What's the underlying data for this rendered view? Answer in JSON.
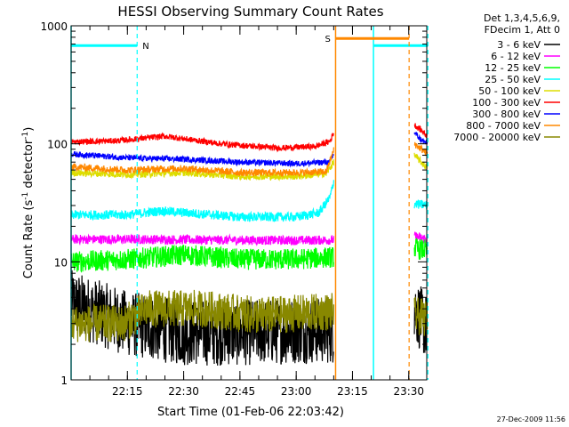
{
  "chart_data": {
    "type": "line",
    "title": "HESSI Observing Summary Count Rates",
    "xlabel": "Start Time (01-Feb-06 22:03:42)",
    "ylabel_main": "Count Rate (s",
    "ylabel_sup1": "-1",
    "ylabel_mid": " detector",
    "ylabel_sup2": "-1",
    "ylabel_end": ")",
    "ylog": true,
    "ylim": [
      1,
      1000
    ],
    "y_ticks": [
      {
        "v": 1,
        "label": "1"
      },
      {
        "v": 10,
        "label": "10"
      },
      {
        "v": 100,
        "label": "100"
      },
      {
        "v": 1000,
        "label": "1000"
      }
    ],
    "xlim": [
      "22:03:42",
      "23:38:30"
    ],
    "x_ticks": [
      {
        "min": 15,
        "label": "22:15"
      },
      {
        "min": 30,
        "label": "22:30"
      },
      {
        "min": 45,
        "label": "22:45"
      },
      {
        "min": 60,
        "label": "23:00"
      },
      {
        "min": 75,
        "label": "23:15"
      },
      {
        "min": 90,
        "label": "23:30"
      }
    ],
    "x_minor_step_minutes": 5,
    "legend": {
      "position": "top-right-outside",
      "header1": "Det 1,3,4,5,6,9,",
      "header2": "FDecim 1, Att 0",
      "entries": [
        {
          "label": "3 - 6 keV",
          "color": "#000000"
        },
        {
          "label": "6 - 12 keV",
          "color": "#ff00ff"
        },
        {
          "label": "12 - 25 keV",
          "color": "#00ff00"
        },
        {
          "label": "25 - 50 keV",
          "color": "#00ffff"
        },
        {
          "label": "50 - 100 keV",
          "color": "#dddd00"
        },
        {
          "label": "100 - 300 keV",
          "color": "#ff0000"
        },
        {
          "label": "300 - 800 keV",
          "color": "#0000ff"
        },
        {
          "label": "800 - 7000 keV",
          "color": "#ff8800"
        },
        {
          "label": "7000 - 20000 keV",
          "color": "#888800"
        }
      ]
    },
    "series": [
      {
        "name": "3 - 6 keV",
        "color": "#000000",
        "seg1": [
          [
            0,
            4.5
          ],
          [
            15,
            3.0
          ],
          [
            30,
            2.5
          ],
          [
            45,
            2.5
          ],
          [
            60,
            2.6
          ],
          [
            70,
            2.6
          ]
        ],
        "seg2": [
          [
            91.5,
            4.0
          ],
          [
            94,
            3.0
          ],
          [
            95,
            2.7
          ]
        ],
        "noise": 0.28
      },
      {
        "name": "6 - 12 keV",
        "color": "#ff00ff",
        "seg1": [
          [
            0,
            15.5
          ],
          [
            20,
            15.5
          ],
          [
            40,
            15.3
          ],
          [
            60,
            15.2
          ],
          [
            70,
            15.3
          ]
        ],
        "seg2": [
          [
            91.5,
            16.5
          ],
          [
            95,
            15.5
          ]
        ],
        "noise": 0.04
      },
      {
        "name": "12 - 25 keV",
        "color": "#00ff00",
        "seg1": [
          [
            0,
            10.0
          ],
          [
            15,
            10.5
          ],
          [
            30,
            11.5
          ],
          [
            45,
            10.5
          ],
          [
            60,
            10.5
          ],
          [
            70,
            11.0
          ]
        ],
        "seg2": [
          [
            91.5,
            13.0
          ],
          [
            95,
            12.5
          ]
        ],
        "noise": 0.09
      },
      {
        "name": "25 - 50 keV",
        "color": "#00ffff",
        "seg1": [
          [
            0,
            25
          ],
          [
            15,
            25
          ],
          [
            24,
            27
          ],
          [
            45,
            24
          ],
          [
            60,
            24
          ],
          [
            66,
            26
          ],
          [
            69,
            35
          ],
          [
            70,
            48
          ]
        ],
        "seg2": [
          [
            91.5,
            31
          ],
          [
            95,
            30
          ]
        ],
        "noise": 0.04
      },
      {
        "name": "50 - 100 keV",
        "color": "#dddd00",
        "seg1": [
          [
            0,
            57
          ],
          [
            15,
            55
          ],
          [
            30,
            57
          ],
          [
            45,
            53
          ],
          [
            60,
            53
          ],
          [
            68,
            56
          ],
          [
            70,
            70
          ]
        ],
        "seg2": [
          [
            91.5,
            80
          ],
          [
            95,
            62
          ]
        ],
        "noise": 0.03
      },
      {
        "name": "100 - 300 keV",
        "color": "#ff0000",
        "seg1": [
          [
            0,
            104
          ],
          [
            12,
            106
          ],
          [
            25,
            116
          ],
          [
            40,
            100
          ],
          [
            55,
            92
          ],
          [
            65,
            95
          ],
          [
            69,
            105
          ],
          [
            70,
            125
          ]
        ],
        "seg2": [
          [
            91.5,
            145
          ],
          [
            94,
            125
          ],
          [
            95,
            115
          ]
        ],
        "noise": 0.025
      },
      {
        "name": "300 - 800 keV",
        "color": "#0000ff",
        "seg1": [
          [
            0,
            82
          ],
          [
            15,
            76
          ],
          [
            30,
            74
          ],
          [
            45,
            70
          ],
          [
            60,
            68
          ],
          [
            69,
            70
          ],
          [
            70,
            82
          ]
        ],
        "seg2": [
          [
            91.5,
            125
          ],
          [
            93,
            110
          ],
          [
            95,
            100
          ]
        ],
        "noise": 0.025
      },
      {
        "name": "800 - 7000 keV",
        "color": "#ff8800",
        "seg1": [
          [
            0,
            64
          ],
          [
            15,
            60
          ],
          [
            30,
            62
          ],
          [
            45,
            57
          ],
          [
            60,
            57
          ],
          [
            68,
            58
          ],
          [
            70,
            88
          ]
        ],
        "seg2": [
          [
            91.5,
            100
          ],
          [
            95,
            82
          ]
        ],
        "noise": 0.03
      },
      {
        "name": "7000 - 20000 keV",
        "color": "#888800",
        "seg1": [
          [
            0,
            3.0
          ],
          [
            14,
            3.0
          ],
          [
            20,
            4.0
          ],
          [
            35,
            4.0
          ],
          [
            50,
            3.5
          ],
          [
            70,
            3.8
          ]
        ],
        "seg2": [
          [
            91.5,
            3.5
          ],
          [
            95,
            3.3
          ]
        ],
        "noise": 0.16
      }
    ],
    "annotations": {
      "night_bars": [
        [
          0,
          17.6
        ],
        [
          80.6,
          95.1
        ]
      ],
      "saa_bar": [
        70.5,
        90.1
      ],
      "night_label": "N",
      "saa_label": "S",
      "night_color": "#00ffff",
      "saa_color": "#ff8800",
      "level": 680
    },
    "footer": "27-Dec-2009 11:56"
  }
}
